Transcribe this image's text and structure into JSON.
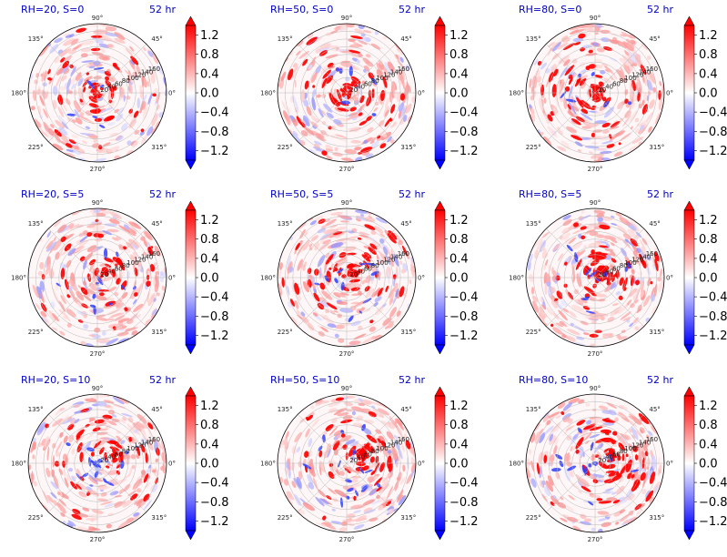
{
  "chart_data": {
    "type": "polar-heatmap-grid",
    "time_label": "52 hr",
    "angular_ticks": [
      "0°",
      "45°",
      "90°",
      "135°",
      "180°",
      "225°",
      "270°",
      "315°"
    ],
    "radial_ticks": [
      20,
      40,
      60,
      80,
      100,
      120,
      140,
      160
    ],
    "colorbar": {
      "colormap": "bwr",
      "vmin": -1.4,
      "vmax": 1.4,
      "extend": "both",
      "ticks": [
        "1.2",
        "0.8",
        "0.4",
        "0.0",
        "−0.4",
        "−0.8",
        "−1.2"
      ]
    },
    "panels": [
      {
        "title": "RH=20, S=0",
        "rh": 20,
        "s": 0
      },
      {
        "title": "RH=50, S=0",
        "rh": 50,
        "s": 0
      },
      {
        "title": "RH=80, S=0",
        "rh": 80,
        "s": 0
      },
      {
        "title": "RH=20, S=5",
        "rh": 20,
        "s": 5
      },
      {
        "title": "RH=50, S=5",
        "rh": 50,
        "s": 5
      },
      {
        "title": "RH=80, S=5",
        "rh": 80,
        "s": 5
      },
      {
        "title": "RH=20, S=10",
        "rh": 20,
        "s": 10
      },
      {
        "title": "RH=50, S=10",
        "rh": 50,
        "s": 10
      },
      {
        "title": "RH=80, S=10",
        "rh": 80,
        "s": 10
      }
    ]
  }
}
